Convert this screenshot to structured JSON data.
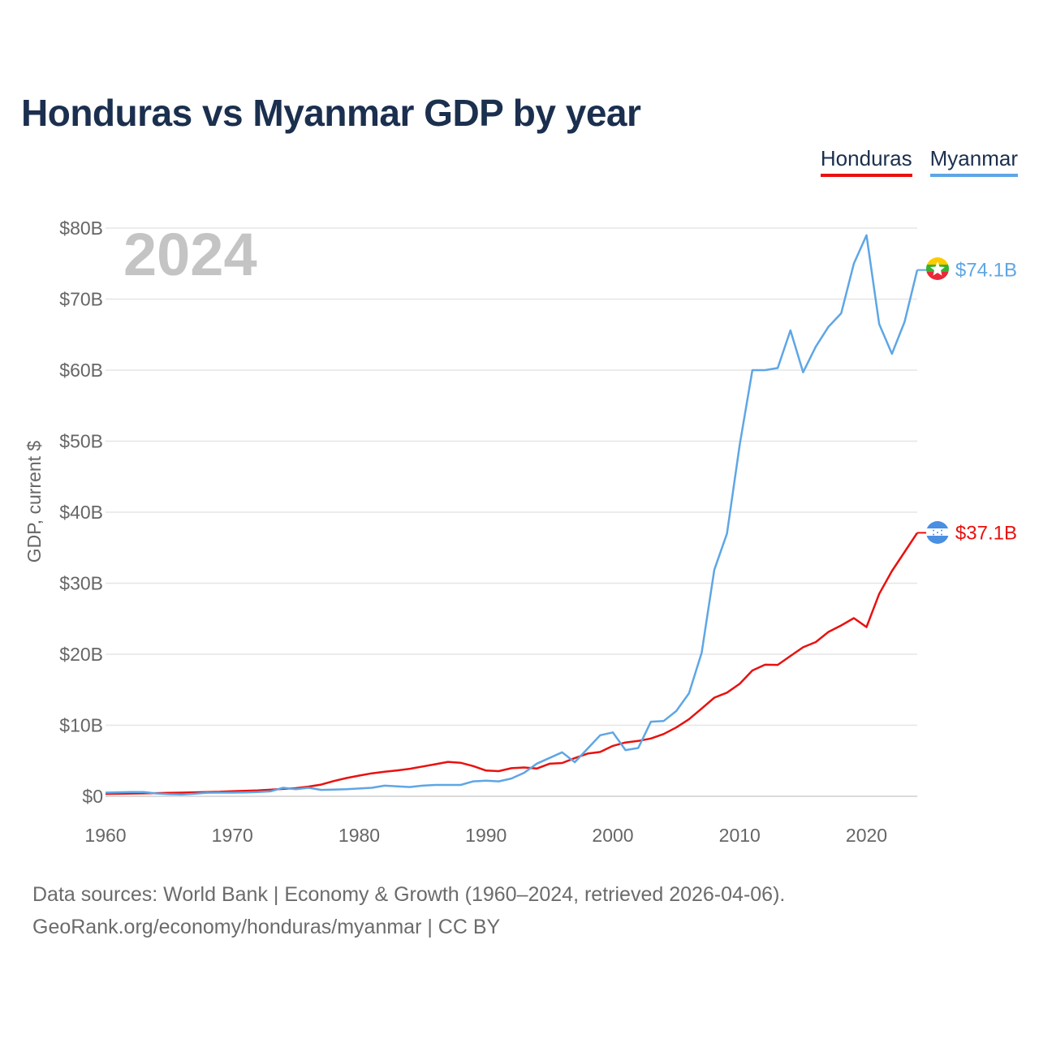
{
  "colors": {
    "honduras": "#e8110f",
    "myanmar": "#5ea6e5",
    "title": "#1b2f4e",
    "grid": "#e6e6e6",
    "year_watermark": "#c4c4c4"
  },
  "chart_data": {
    "type": "line",
    "title": "Honduras vs Myanmar GDP by year",
    "ylabel": "GDP, current $",
    "xlabel": "",
    "year_watermark": "2024",
    "xlim": [
      1960,
      2024
    ],
    "ylim": [
      0,
      80
    ],
    "x_ticks": [
      1960,
      1970,
      1980,
      1990,
      2000,
      2010,
      2020
    ],
    "y_ticks": [
      {
        "value": 0,
        "label": "$0"
      },
      {
        "value": 10,
        "label": "$10B"
      },
      {
        "value": 20,
        "label": "$20B"
      },
      {
        "value": 30,
        "label": "$30B"
      },
      {
        "value": 40,
        "label": "$40B"
      },
      {
        "value": 50,
        "label": "$50B"
      },
      {
        "value": 60,
        "label": "$60B"
      },
      {
        "value": 70,
        "label": "$70B"
      },
      {
        "value": 80,
        "label": "$80B"
      }
    ],
    "legend": [
      "Honduras",
      "Myanmar"
    ],
    "legend_position": "top-right",
    "x": [
      1960,
      1961,
      1962,
      1963,
      1964,
      1965,
      1966,
      1967,
      1968,
      1969,
      1970,
      1971,
      1972,
      1973,
      1974,
      1975,
      1976,
      1977,
      1978,
      1979,
      1980,
      1981,
      1982,
      1983,
      1984,
      1985,
      1986,
      1987,
      1988,
      1989,
      1990,
      1991,
      1992,
      1993,
      1994,
      1995,
      1996,
      1997,
      1998,
      1999,
      2000,
      2001,
      2002,
      2003,
      2004,
      2005,
      2006,
      2007,
      2008,
      2009,
      2010,
      2011,
      2012,
      2013,
      2014,
      2015,
      2016,
      2017,
      2018,
      2019,
      2020,
      2021,
      2022,
      2023,
      2024
    ],
    "series": [
      {
        "name": "Honduras",
        "color_key": "honduras",
        "end_label": "$37.1B",
        "flag": "honduras-flag",
        "values": [
          0.34,
          0.36,
          0.39,
          0.41,
          0.45,
          0.49,
          0.52,
          0.56,
          0.61,
          0.64,
          0.72,
          0.77,
          0.82,
          0.93,
          1.04,
          1.14,
          1.36,
          1.65,
          2.15,
          2.57,
          2.92,
          3.23,
          3.45,
          3.64,
          3.87,
          4.2,
          4.52,
          4.84,
          4.72,
          4.25,
          3.62,
          3.54,
          3.96,
          4.06,
          3.91,
          4.58,
          4.68,
          5.38,
          6.01,
          6.24,
          7.1,
          7.58,
          7.79,
          8.14,
          8.77,
          9.69,
          10.84,
          12.35,
          13.88,
          14.59,
          15.84,
          17.71,
          18.53,
          18.5,
          19.76,
          20.98,
          21.72,
          23.14,
          24.06,
          25.09,
          23.83,
          28.49,
          31.72,
          34.4,
          37.1
        ]
      },
      {
        "name": "Myanmar",
        "color_key": "myanmar",
        "end_label": "$74.1B",
        "flag": "myanmar-flag",
        "values": [
          0.52,
          0.56,
          0.6,
          0.6,
          0.4,
          0.3,
          0.25,
          0.35,
          0.5,
          0.52,
          0.52,
          0.55,
          0.6,
          0.7,
          1.2,
          1.0,
          1.2,
          0.9,
          0.95,
          1.0,
          1.1,
          1.2,
          1.5,
          1.4,
          1.3,
          1.5,
          1.6,
          1.6,
          1.6,
          2.1,
          2.2,
          2.1,
          2.5,
          3.3,
          4.6,
          5.4,
          6.2,
          4.8,
          6.7,
          8.6,
          9.0,
          6.5,
          6.8,
          10.5,
          10.6,
          12.0,
          14.5,
          20.2,
          31.9,
          37.0,
          49.5,
          60.0,
          60.0,
          60.3,
          65.6,
          59.7,
          63.3,
          66.1,
          68.0,
          75.0,
          79.0,
          66.5,
          62.3,
          66.8,
          74.1
        ]
      }
    ]
  },
  "footer": {
    "line1": "Data sources: World Bank | Economy & Growth (1960–2024, retrieved 2026-04-06).",
    "line2": "GeoRank.org/economy/honduras/myanmar | CC BY"
  }
}
